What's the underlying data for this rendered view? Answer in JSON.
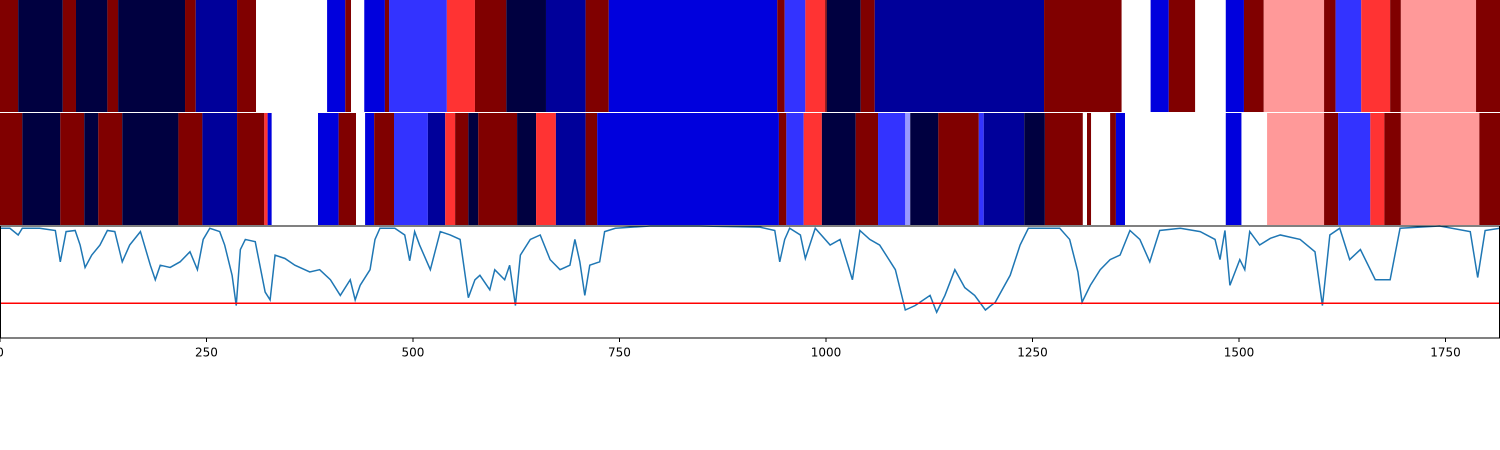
{
  "chart_data": {
    "type": "strips-line",
    "xlim": [
      0,
      1816
    ],
    "xticks": [
      0,
      250,
      500,
      750,
      1000,
      1250,
      1500,
      1750
    ],
    "strips": [
      {
        "edges": [
          0,
          22,
          76,
          92,
          130,
          143,
          224,
          237,
          287,
          310,
          396,
          418,
          425,
          441,
          466,
          471,
          541,
          575,
          613,
          661,
          709,
          737,
          941,
          950,
          975,
          999,
          1001,
          1042,
          1059,
          1264,
          1358,
          1393,
          1415,
          1447,
          1484,
          1506,
          1530,
          1603,
          1617,
          1648,
          1683,
          1696,
          1787,
          1816
        ],
        "colors": [
          "#800000",
          "#000040",
          "#800000",
          "#000040",
          "#800000",
          "#000040",
          "#800000",
          "#00009a",
          "#800000",
          "#ffffff",
          "#0000dd",
          "#800000",
          "#ffffff",
          "#0000dd",
          "#800000",
          "#3333ff",
          "#ff3333",
          "#800000",
          "#000040",
          "#00009a",
          "#800000",
          "#0000dd",
          "#800000",
          "#3333ff",
          "#ff3333",
          "#800000",
          "#000040",
          "#800000",
          "#00009a",
          "#800000",
          "#ffffff",
          "#0000dd",
          "#800000",
          "#ffffff",
          "#0000dd",
          "#800000",
          "#ff9999",
          "#800000",
          "#3333ff",
          "#ff3333",
          "#800000",
          "#ff9999",
          "#800000"
        ]
      },
      {
        "edges": [
          0,
          27,
          73,
          102,
          119,
          148,
          216,
          245,
          287,
          320,
          324,
          329,
          385,
          410,
          431,
          442,
          453,
          477,
          518,
          539,
          551,
          567,
          579,
          626,
          649,
          673,
          709,
          723,
          943,
          952,
          973,
          995,
          1036,
          1063,
          1096,
          1102,
          1136,
          1185,
          1191,
          1240,
          1265,
          1311,
          1316,
          1321,
          1344,
          1351,
          1362,
          1484,
          1503,
          1534,
          1603,
          1620,
          1659,
          1676,
          1696,
          1791,
          1816
        ],
        "colors": [
          "#800000",
          "#000040",
          "#800000",
          "#000040",
          "#800000",
          "#000040",
          "#800000",
          "#00009a",
          "#800000",
          "#ff3333",
          "#0000dd",
          "#ffffff",
          "#0000dd",
          "#800000",
          "#ffffff",
          "#0000dd",
          "#800000",
          "#3333ff",
          "#00009a",
          "#ff3333",
          "#800000",
          "#000040",
          "#800000",
          "#000040",
          "#ff3333",
          "#00009a",
          "#800000",
          "#0000dd",
          "#800000",
          "#3333ff",
          "#ff3333",
          "#000040",
          "#800000",
          "#3333ff",
          "#9999ff",
          "#000040",
          "#800000",
          "#3333ff",
          "#00009a",
          "#000040",
          "#800000",
          "#ffffff",
          "#800000",
          "#ffffff",
          "#800000",
          "#0000dd",
          "#ffffff",
          "#0000dd",
          "#ffffff",
          "#ff9999",
          "#800000",
          "#3333ff",
          "#ff3333",
          "#800000",
          "#ff9999",
          "#800000"
        ]
      }
    ],
    "line": {
      "color": "#1f77b4",
      "ylim": [
        0,
        1.0
      ],
      "x": [
        0,
        12,
        22,
        27,
        48,
        67,
        73,
        80,
        91,
        97,
        103,
        111,
        121,
        130,
        139,
        148,
        157,
        170,
        182,
        188,
        194,
        206,
        218,
        230,
        239,
        246,
        254,
        266,
        272,
        281,
        286,
        291,
        297,
        309,
        321,
        327,
        333,
        345,
        357,
        375,
        387,
        400,
        412,
        424,
        430,
        436,
        448,
        454,
        460,
        478,
        490,
        496,
        502,
        508,
        521,
        533,
        545,
        557,
        567,
        575,
        581,
        593,
        599,
        611,
        617,
        624,
        630,
        642,
        654,
        666,
        678,
        690,
        696,
        702,
        708,
        714,
        726,
        732,
        745,
        787,
        847,
        920,
        938,
        944,
        950,
        956,
        969,
        975,
        987,
        1005,
        1017,
        1032,
        1041,
        1053,
        1065,
        1084,
        1096,
        1108,
        1126,
        1134,
        1144,
        1156,
        1168,
        1180,
        1193,
        1205,
        1223,
        1235,
        1245,
        1283,
        1295,
        1305,
        1310,
        1320,
        1332,
        1344,
        1356,
        1368,
        1380,
        1392,
        1404,
        1429,
        1453,
        1471,
        1477,
        1483,
        1489,
        1501,
        1507,
        1513,
        1525,
        1538,
        1550,
        1574,
        1592,
        1601,
        1610,
        1622,
        1634,
        1647,
        1665,
        1683,
        1695,
        1743,
        1780,
        1789,
        1798,
        1816
      ],
      "values": [
        0.98,
        0.98,
        0.92,
        0.98,
        0.98,
        0.96,
        0.68,
        0.95,
        0.96,
        0.83,
        0.63,
        0.74,
        0.83,
        0.96,
        0.95,
        0.68,
        0.83,
        0.95,
        0.65,
        0.52,
        0.65,
        0.63,
        0.68,
        0.77,
        0.61,
        0.88,
        0.98,
        0.95,
        0.83,
        0.56,
        0.29,
        0.79,
        0.88,
        0.86,
        0.41,
        0.34,
        0.74,
        0.71,
        0.65,
        0.59,
        0.61,
        0.52,
        0.38,
        0.52,
        0.34,
        0.47,
        0.61,
        0.88,
        0.98,
        0.98,
        0.92,
        0.69,
        0.95,
        0.83,
        0.61,
        0.95,
        0.92,
        0.88,
        0.36,
        0.52,
        0.56,
        0.43,
        0.61,
        0.52,
        0.65,
        0.29,
        0.74,
        0.88,
        0.92,
        0.7,
        0.61,
        0.65,
        0.88,
        0.68,
        0.38,
        0.65,
        0.68,
        0.95,
        0.98,
        1.0,
        1.0,
        0.99,
        0.96,
        0.68,
        0.88,
        0.98,
        0.92,
        0.71,
        0.98,
        0.83,
        0.88,
        0.52,
        0.96,
        0.88,
        0.83,
        0.61,
        0.25,
        0.29,
        0.38,
        0.23,
        0.38,
        0.61,
        0.45,
        0.38,
        0.25,
        0.32,
        0.56,
        0.83,
        0.98,
        0.98,
        0.88,
        0.59,
        0.32,
        0.47,
        0.61,
        0.7,
        0.74,
        0.96,
        0.88,
        0.68,
        0.96,
        0.98,
        0.95,
        0.88,
        0.7,
        0.96,
        0.47,
        0.7,
        0.61,
        0.95,
        0.83,
        0.89,
        0.92,
        0.88,
        0.77,
        0.29,
        0.92,
        0.98,
        0.7,
        0.79,
        0.52,
        0.52,
        0.98,
        1.0,
        0.95,
        0.54,
        0.96,
        0.98
      ]
    },
    "threshold": {
      "value": 0.31,
      "color": "#ff0000"
    }
  }
}
